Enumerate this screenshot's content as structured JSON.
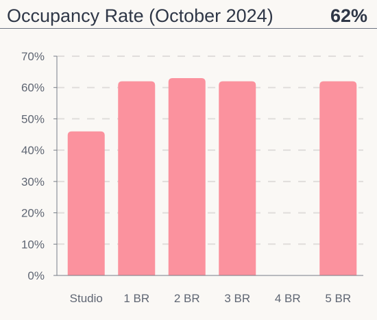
{
  "header": {
    "title": "Occupancy Rate (October 2024)",
    "kpi_value": "62%"
  },
  "colors": {
    "bar": "#fb929e",
    "grid": "#e0dddb",
    "axis": "#777d87",
    "background": "#faf8f5",
    "text": "#2f3747"
  },
  "chart_data": {
    "type": "bar",
    "title": "",
    "xlabel": "",
    "ylabel": "",
    "categories": [
      "Studio",
      "1 BR",
      "2 BR",
      "3 BR",
      "4 BR",
      "5 BR"
    ],
    "values": [
      46,
      62,
      63,
      62,
      0,
      62
    ],
    "ylim": [
      0,
      70
    ],
    "yticks": [
      0,
      10,
      20,
      30,
      40,
      50,
      60,
      70
    ],
    "ytick_labels": [
      "0%",
      "10%",
      "20%",
      "30%",
      "40%",
      "50%",
      "60%",
      "70%"
    ],
    "grid": true,
    "legend": "none"
  }
}
